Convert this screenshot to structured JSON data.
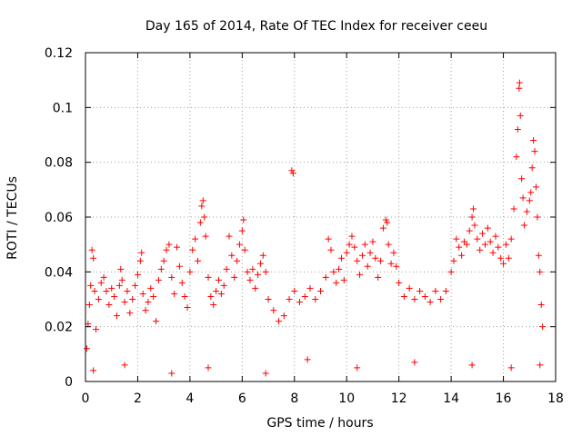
{
  "chart_data": {
    "type": "scatter",
    "title": "Day 165 of 2014, Rate Of TEC Index for receiver ceeu",
    "xlabel": "GPS time / hours",
    "ylabel": "ROTI / TECUs",
    "xlim": [
      0,
      18
    ],
    "ylim": [
      0,
      0.12
    ],
    "x_ticks": [
      0,
      2,
      4,
      6,
      8,
      10,
      12,
      14,
      16,
      18
    ],
    "y_ticks": [
      0,
      0.02,
      0.04,
      0.06,
      0.08,
      0.1,
      0.12
    ],
    "x_tick_labels": [
      "0",
      "2",
      "4",
      "6",
      "8",
      "10",
      "12",
      "14",
      "16",
      "18"
    ],
    "y_tick_labels": [
      "0",
      "0.02",
      "0.04",
      "0.06",
      "0.08",
      "0.1",
      "0.12"
    ],
    "grid": true,
    "marker": "+",
    "color": "#ff0000",
    "series": [
      {
        "name": "ROTI",
        "points": [
          [
            0.05,
            0.012
          ],
          [
            0.1,
            0.021
          ],
          [
            0.15,
            0.028
          ],
          [
            0.2,
            0.035
          ],
          [
            0.25,
            0.048
          ],
          [
            0.3,
            0.045
          ],
          [
            0.35,
            0.033
          ],
          [
            0.4,
            0.019
          ],
          [
            0.5,
            0.03
          ],
          [
            0.6,
            0.036
          ],
          [
            0.7,
            0.038
          ],
          [
            0.8,
            0.033
          ],
          [
            0.9,
            0.028
          ],
          [
            1.0,
            0.034
          ],
          [
            1.1,
            0.031
          ],
          [
            1.2,
            0.024
          ],
          [
            1.3,
            0.035
          ],
          [
            1.35,
            0.041
          ],
          [
            1.4,
            0.037
          ],
          [
            1.5,
            0.029
          ],
          [
            1.6,
            0.033
          ],
          [
            1.7,
            0.025
          ],
          [
            1.8,
            0.03
          ],
          [
            1.9,
            0.035
          ],
          [
            2.0,
            0.039
          ],
          [
            2.1,
            0.044
          ],
          [
            2.15,
            0.047
          ],
          [
            2.2,
            0.032
          ],
          [
            2.3,
            0.026
          ],
          [
            2.4,
            0.029
          ],
          [
            2.5,
            0.034
          ],
          [
            2.6,
            0.031
          ],
          [
            2.7,
            0.022
          ],
          [
            2.8,
            0.037
          ],
          [
            2.9,
            0.041
          ],
          [
            3.0,
            0.044
          ],
          [
            3.1,
            0.048
          ],
          [
            3.2,
            0.05
          ],
          [
            3.3,
            0.038
          ],
          [
            3.4,
            0.032
          ],
          [
            3.5,
            0.049
          ],
          [
            3.6,
            0.042
          ],
          [
            3.7,
            0.036
          ],
          [
            3.8,
            0.031
          ],
          [
            3.9,
            0.027
          ],
          [
            4.0,
            0.04
          ],
          [
            4.1,
            0.048
          ],
          [
            4.2,
            0.052
          ],
          [
            4.3,
            0.044
          ],
          [
            4.4,
            0.058
          ],
          [
            4.45,
            0.064
          ],
          [
            4.5,
            0.066
          ],
          [
            4.55,
            0.06
          ],
          [
            4.6,
            0.053
          ],
          [
            4.7,
            0.038
          ],
          [
            4.8,
            0.031
          ],
          [
            4.9,
            0.028
          ],
          [
            5.0,
            0.033
          ],
          [
            5.1,
            0.037
          ],
          [
            5.2,
            0.032
          ],
          [
            5.3,
            0.035
          ],
          [
            5.4,
            0.041
          ],
          [
            5.5,
            0.053
          ],
          [
            5.6,
            0.046
          ],
          [
            5.7,
            0.038
          ],
          [
            5.8,
            0.044
          ],
          [
            5.9,
            0.05
          ],
          [
            6.0,
            0.055
          ],
          [
            6.05,
            0.059
          ],
          [
            6.1,
            0.048
          ],
          [
            6.2,
            0.04
          ],
          [
            6.3,
            0.037
          ],
          [
            6.4,
            0.041
          ],
          [
            6.5,
            0.034
          ],
          [
            6.6,
            0.039
          ],
          [
            6.7,
            0.043
          ],
          [
            6.8,
            0.046
          ],
          [
            6.9,
            0.04
          ],
          [
            7.0,
            0.03
          ],
          [
            7.2,
            0.026
          ],
          [
            7.4,
            0.022
          ],
          [
            7.6,
            0.024
          ],
          [
            7.8,
            0.03
          ],
          [
            7.9,
            0.077
          ],
          [
            7.95,
            0.076
          ],
          [
            8.0,
            0.033
          ],
          [
            8.2,
            0.029
          ],
          [
            8.4,
            0.031
          ],
          [
            8.6,
            0.034
          ],
          [
            8.8,
            0.03
          ],
          [
            9.0,
            0.033
          ],
          [
            9.2,
            0.038
          ],
          [
            9.3,
            0.052
          ],
          [
            9.4,
            0.048
          ],
          [
            9.5,
            0.04
          ],
          [
            9.6,
            0.036
          ],
          [
            9.7,
            0.041
          ],
          [
            9.8,
            0.045
          ],
          [
            9.9,
            0.037
          ],
          [
            10.0,
            0.047
          ],
          [
            10.1,
            0.05
          ],
          [
            10.2,
            0.053
          ],
          [
            10.3,
            0.049
          ],
          [
            10.4,
            0.044
          ],
          [
            10.5,
            0.039
          ],
          [
            10.6,
            0.046
          ],
          [
            10.7,
            0.05
          ],
          [
            10.8,
            0.042
          ],
          [
            10.9,
            0.047
          ],
          [
            11.0,
            0.051
          ],
          [
            11.1,
            0.045
          ],
          [
            11.2,
            0.038
          ],
          [
            11.3,
            0.044
          ],
          [
            11.4,
            0.056
          ],
          [
            11.5,
            0.059
          ],
          [
            11.55,
            0.058
          ],
          [
            11.6,
            0.05
          ],
          [
            11.7,
            0.043
          ],
          [
            11.8,
            0.047
          ],
          [
            11.9,
            0.042
          ],
          [
            12.0,
            0.036
          ],
          [
            12.2,
            0.031
          ],
          [
            12.4,
            0.034
          ],
          [
            12.6,
            0.03
          ],
          [
            12.8,
            0.033
          ],
          [
            13.0,
            0.031
          ],
          [
            13.2,
            0.029
          ],
          [
            13.4,
            0.033
          ],
          [
            13.6,
            0.03
          ],
          [
            13.8,
            0.033
          ],
          [
            14.0,
            0.04
          ],
          [
            14.1,
            0.044
          ],
          [
            14.2,
            0.052
          ],
          [
            14.3,
            0.049
          ],
          [
            14.4,
            0.046
          ],
          [
            14.5,
            0.051
          ],
          [
            14.6,
            0.05
          ],
          [
            14.7,
            0.055
          ],
          [
            14.8,
            0.06
          ],
          [
            14.85,
            0.063
          ],
          [
            14.9,
            0.057
          ],
          [
            15.0,
            0.052
          ],
          [
            15.1,
            0.048
          ],
          [
            15.2,
            0.054
          ],
          [
            15.3,
            0.05
          ],
          [
            15.4,
            0.056
          ],
          [
            15.5,
            0.051
          ],
          [
            15.6,
            0.047
          ],
          [
            15.7,
            0.053
          ],
          [
            15.8,
            0.049
          ],
          [
            15.9,
            0.045
          ],
          [
            16.0,
            0.043
          ],
          [
            16.1,
            0.05
          ],
          [
            16.2,
            0.045
          ],
          [
            16.3,
            0.052
          ],
          [
            16.4,
            0.063
          ],
          [
            16.5,
            0.082
          ],
          [
            16.55,
            0.092
          ],
          [
            16.6,
            0.107
          ],
          [
            16.62,
            0.109
          ],
          [
            16.65,
            0.097
          ],
          [
            16.7,
            0.074
          ],
          [
            16.75,
            0.067
          ],
          [
            16.8,
            0.057
          ],
          [
            16.9,
            0.062
          ],
          [
            17.0,
            0.066
          ],
          [
            17.05,
            0.069
          ],
          [
            17.1,
            0.078
          ],
          [
            17.15,
            0.088
          ],
          [
            17.2,
            0.084
          ],
          [
            17.25,
            0.071
          ],
          [
            17.3,
            0.06
          ],
          [
            17.35,
            0.046
          ],
          [
            17.4,
            0.04
          ],
          [
            17.45,
            0.028
          ],
          [
            17.5,
            0.02
          ],
          [
            0.3,
            0.004
          ],
          [
            1.5,
            0.006
          ],
          [
            3.3,
            0.003
          ],
          [
            4.7,
            0.005
          ],
          [
            6.9,
            0.003
          ],
          [
            8.5,
            0.008
          ],
          [
            10.4,
            0.005
          ],
          [
            12.6,
            0.007
          ],
          [
            14.8,
            0.006
          ],
          [
            16.3,
            0.005
          ],
          [
            17.4,
            0.006
          ]
        ]
      }
    ]
  }
}
